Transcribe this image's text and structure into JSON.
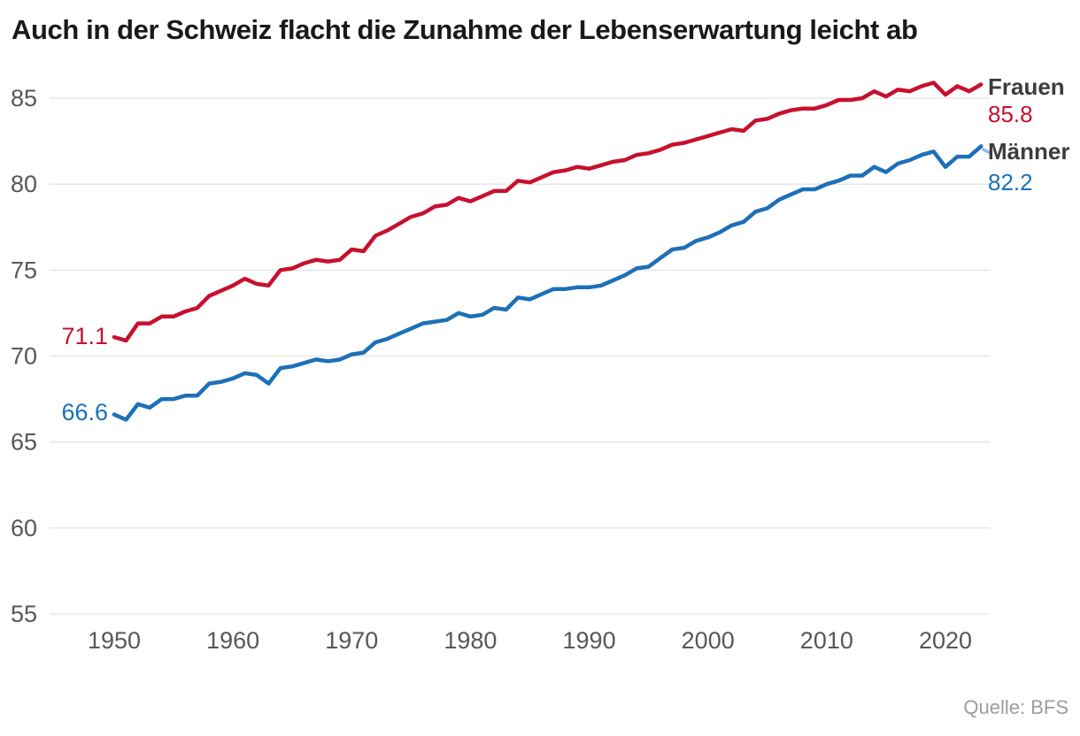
{
  "chart": {
    "title": "Auch in der Schweiz flacht die Zunahme der Lebenserwartung leicht ab",
    "source": "Quelle: BFS"
  },
  "chart_data": {
    "type": "line",
    "title": "Auch in der Schweiz flacht die Zunahme der Lebenserwartung leicht ab",
    "xlabel": "",
    "ylabel": "",
    "x_start": 1950,
    "x_end": 2023,
    "x_step": 1,
    "x_ticks": [
      1950,
      1960,
      1970,
      1980,
      1990,
      2000,
      2010,
      2020
    ],
    "y_ticks": [
      55,
      60,
      65,
      70,
      75,
      80,
      85
    ],
    "ylim": [
      55,
      87
    ],
    "grid": "horizontal",
    "gridline_color": "#e4e4e4",
    "tick_label_color": "#575757",
    "legend_position": "right-of-line-ends",
    "series": [
      {
        "name": "Frauen",
        "color": "#c8102e",
        "start_label": "71.1",
        "end_label": "85.8",
        "values": [
          71.1,
          70.9,
          71.9,
          71.9,
          72.3,
          72.3,
          72.6,
          72.8,
          73.5,
          73.8,
          74.1,
          74.5,
          74.2,
          74.1,
          75.0,
          75.1,
          75.4,
          75.6,
          75.5,
          75.6,
          76.2,
          76.1,
          77.0,
          77.3,
          77.7,
          78.1,
          78.3,
          78.7,
          78.8,
          79.2,
          79.0,
          79.3,
          79.6,
          79.6,
          80.2,
          80.1,
          80.4,
          80.7,
          80.8,
          81.0,
          80.9,
          81.1,
          81.3,
          81.4,
          81.7,
          81.8,
          82.0,
          82.3,
          82.4,
          82.6,
          82.8,
          83.0,
          83.2,
          83.1,
          83.7,
          83.8,
          84.1,
          84.3,
          84.4,
          84.4,
          84.6,
          84.9,
          84.9,
          85.0,
          85.4,
          85.1,
          85.5,
          85.4,
          85.7,
          85.9,
          85.2,
          85.7,
          85.4,
          85.8
        ]
      },
      {
        "name": "Männer",
        "color": "#1d70b7",
        "start_label": "66.6",
        "end_label": "82.2",
        "leader_dash": true,
        "values": [
          66.6,
          66.3,
          67.2,
          67.0,
          67.5,
          67.5,
          67.7,
          67.7,
          68.4,
          68.5,
          68.7,
          69.0,
          68.9,
          68.4,
          69.3,
          69.4,
          69.6,
          69.8,
          69.7,
          69.8,
          70.1,
          70.2,
          70.8,
          71.0,
          71.3,
          71.6,
          71.9,
          72.0,
          72.1,
          72.5,
          72.3,
          72.4,
          72.8,
          72.7,
          73.4,
          73.3,
          73.6,
          73.9,
          73.9,
          74.0,
          74.0,
          74.1,
          74.4,
          74.7,
          75.1,
          75.2,
          75.7,
          76.2,
          76.3,
          76.7,
          76.9,
          77.2,
          77.6,
          77.8,
          78.4,
          78.6,
          79.1,
          79.4,
          79.7,
          79.7,
          80.0,
          80.2,
          80.5,
          80.5,
          81.0,
          80.7,
          81.2,
          81.4,
          81.7,
          81.9,
          81.0,
          81.6,
          81.6,
          82.2
        ]
      }
    ]
  }
}
